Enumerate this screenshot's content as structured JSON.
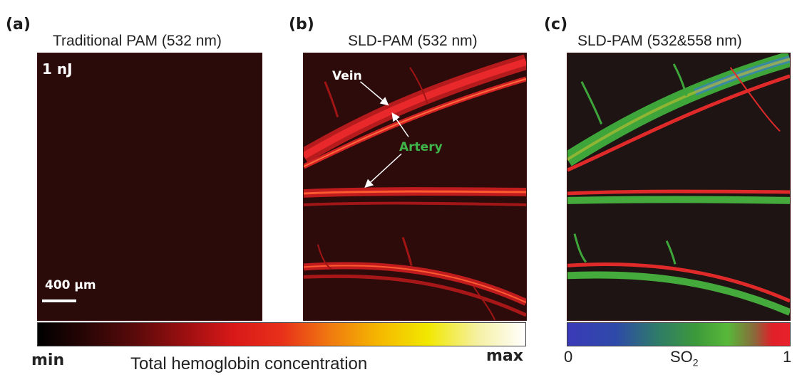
{
  "panels": [
    {
      "letter": "(a)",
      "title": "Traditional PAM (532 nm)",
      "energy_label": "1 nJ",
      "scalebar_label": "400 µm"
    },
    {
      "letter": "(b)",
      "title": "SLD-PAM (532 nm)",
      "vein_label": "Vein",
      "artery_label": "Artery"
    },
    {
      "letter": "(c)",
      "title": "SLD-PAM (532&558 nm)"
    }
  ],
  "hemoglobin_bar": {
    "min_label": "min",
    "max_label": "max",
    "caption": "Total hemoglobin concentration"
  },
  "so2_bar": {
    "min_label": "0",
    "max_label": "1",
    "caption_main": "SO",
    "caption_sub": "2"
  },
  "colors": {
    "artery_label": "#3fb54a",
    "vein_label": "#ffffff",
    "vessel_red": "#e8282a",
    "background_dark": "#2d0b0b"
  }
}
